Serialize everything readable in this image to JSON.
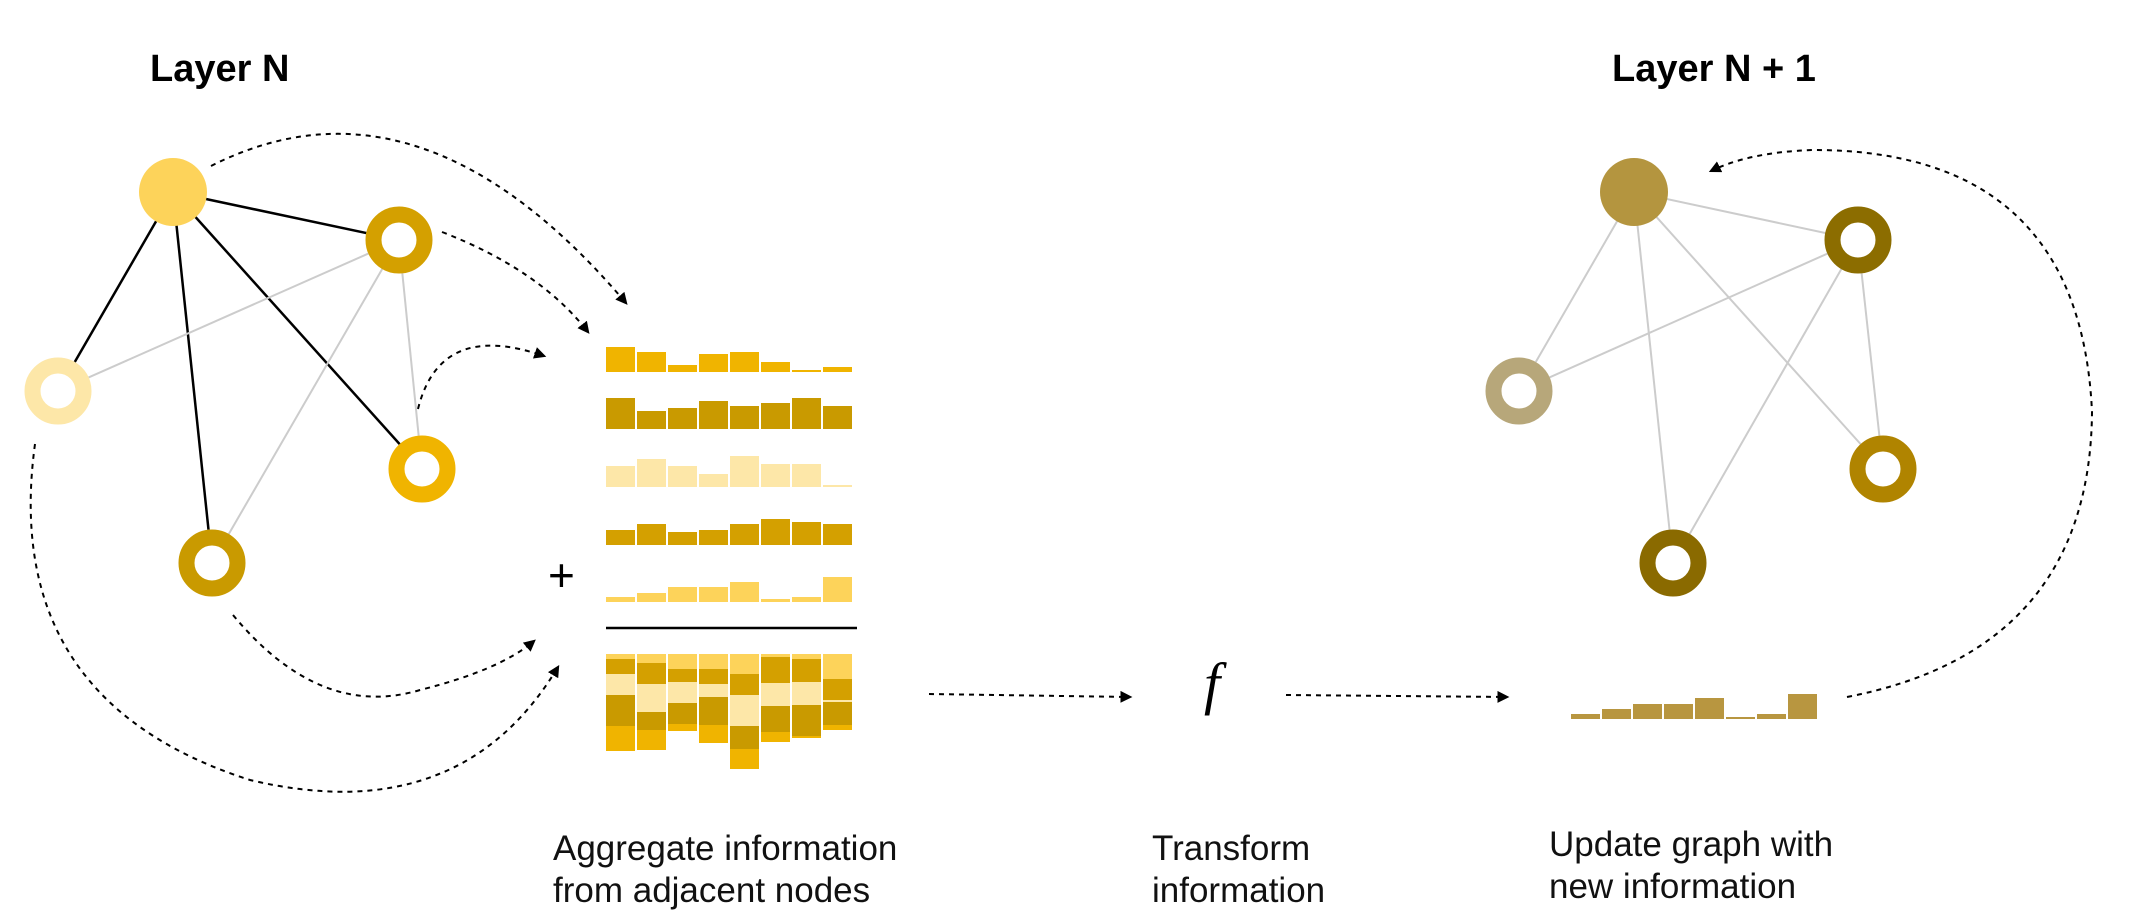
{
  "titles": {
    "left": "Layer N",
    "right": "Layer N + 1"
  },
  "steps": {
    "aggregate": [
      "Aggregate information",
      "from adjacent nodes"
    ],
    "transform": [
      "Transform",
      "information"
    ],
    "update": [
      "Update graph with",
      "new information"
    ]
  },
  "symbols": {
    "plus": "+",
    "function": "f"
  },
  "layer_n": {
    "edge_colors": {
      "primary": "#000000",
      "secondary": "#cccccc"
    },
    "nodes": [
      {
        "id": "center",
        "style": "filled",
        "color": "#FDD35A"
      },
      {
        "id": "upper-right",
        "style": "ring",
        "color": "#D4A000"
      },
      {
        "id": "left",
        "style": "ring",
        "color": "#FDE7A8"
      },
      {
        "id": "right",
        "style": "ring",
        "color": "#F0B400"
      },
      {
        "id": "bottom",
        "style": "ring",
        "color": "#C99A00"
      }
    ]
  },
  "layer_n1": {
    "edge_color": "#cccccc",
    "nodes": [
      {
        "id": "center",
        "style": "filled",
        "color": "#B4953F"
      },
      {
        "id": "upper-right",
        "style": "ring",
        "color": "#8C6D00"
      },
      {
        "id": "left",
        "style": "ring",
        "color": "#B7A77A"
      },
      {
        "id": "right",
        "style": "ring",
        "color": "#B08400"
      },
      {
        "id": "bottom",
        "style": "ring",
        "color": "#8A6A00"
      }
    ]
  },
  "feature_vectors": [
    {
      "color": "#F0B400",
      "values": [
        25,
        20,
        7,
        18,
        20,
        10,
        2,
        5
      ]
    },
    {
      "color": "#C99A00",
      "values": [
        31,
        18,
        21,
        28,
        23,
        26,
        31,
        23
      ]
    },
    {
      "color": "#FDE7A8",
      "values": [
        21,
        28,
        21,
        13,
        31,
        23,
        23,
        2
      ]
    },
    {
      "color": "#D4A000",
      "values": [
        15,
        21,
        13,
        15,
        21,
        26,
        23,
        21
      ]
    },
    {
      "color": "#FDD35A",
      "values": [
        5,
        9,
        15,
        15,
        20,
        3,
        5,
        25
      ]
    }
  ],
  "output_vector": {
    "color": "#B89640",
    "values": [
      5,
      10,
      15,
      15,
      21,
      2,
      5,
      25
    ]
  }
}
